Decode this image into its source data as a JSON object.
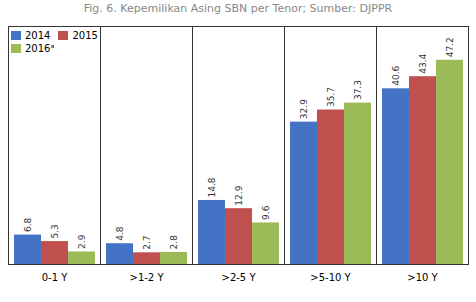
{
  "chart_data": {
    "type": "bar",
    "title": "Fig. 6. Kepemilikan Asing SBN per Tenor; Sumber: DJPPR",
    "categories": [
      "0-1 Y",
      ">1-2 Y",
      ">2-5 Y",
      ">5-10 Y",
      ">10 Y"
    ],
    "series": [
      {
        "name": "2014",
        "color": "#4472C4",
        "values": [
          6.8,
          4.8,
          14.8,
          32.9,
          40.6
        ]
      },
      {
        "name": "2015",
        "color": "#C0504D",
        "values": [
          5.3,
          2.7,
          12.9,
          35.7,
          43.4
        ]
      },
      {
        "name": "2016ᵃ",
        "color": "#9BBB59",
        "values": [
          2.9,
          2.8,
          9.6,
          37.3,
          47.2
        ]
      }
    ],
    "ylim": [
      0,
      55
    ],
    "data_labels": true,
    "tick_labels": "x",
    "legend": "upper left",
    "grid": false
  }
}
